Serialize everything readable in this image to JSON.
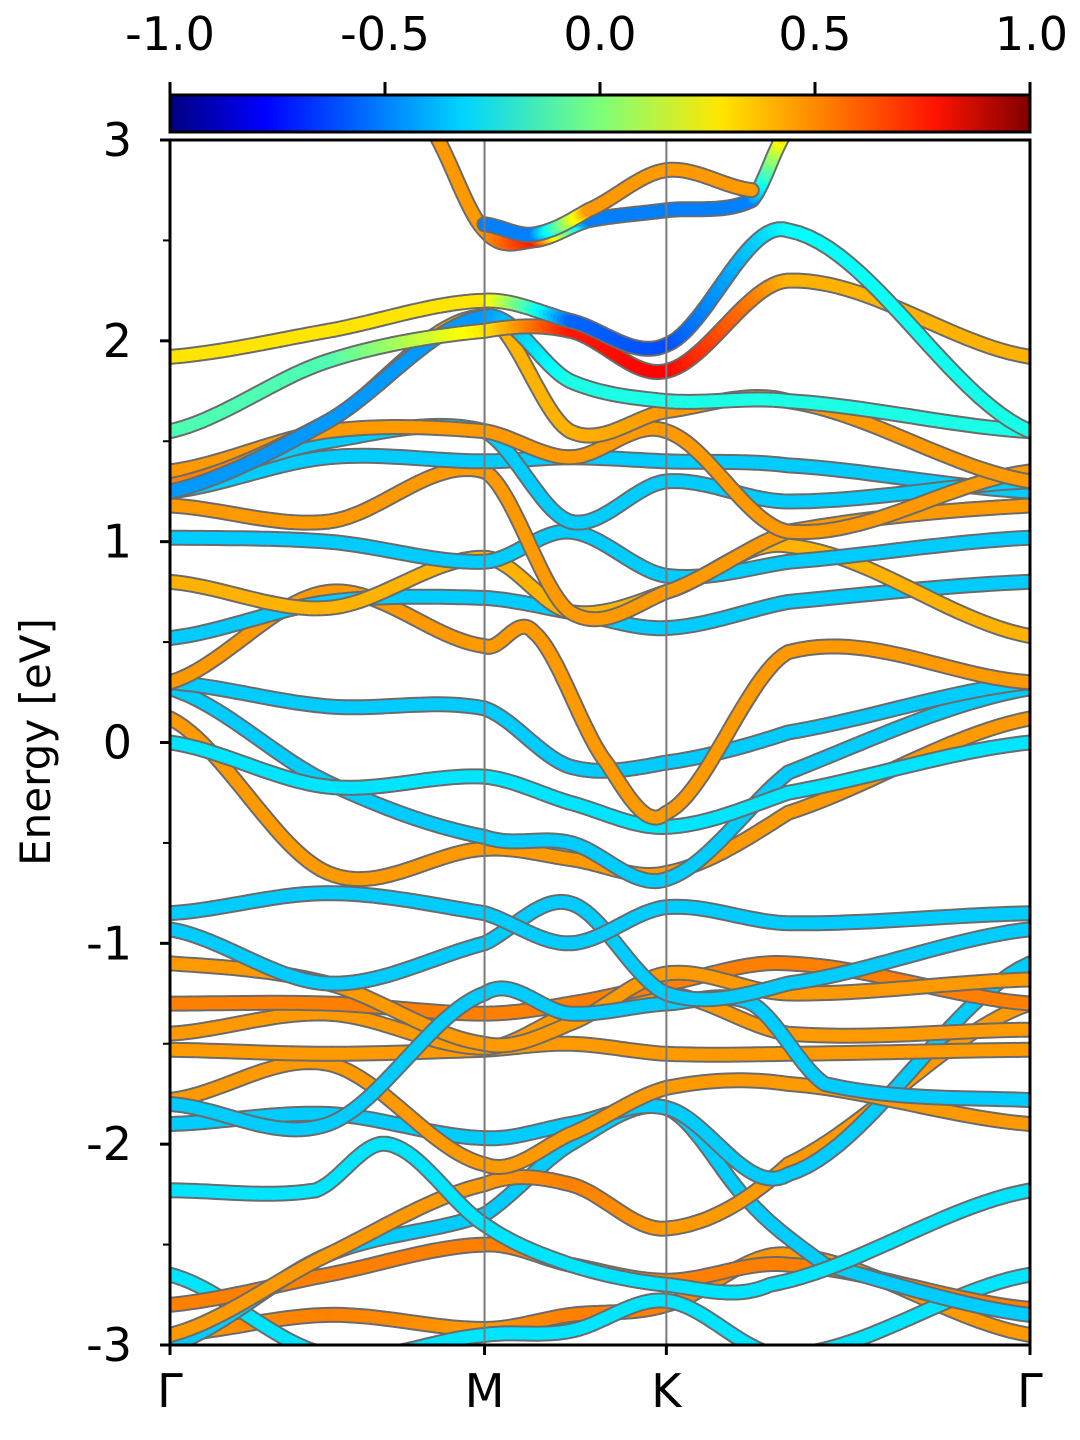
{
  "chart_data": {
    "type": "line",
    "ylabel": "Energy [eV]",
    "ylim": [
      -3,
      3
    ],
    "yticks": [
      -3,
      -2,
      -1,
      0,
      1,
      2,
      3
    ],
    "yminor_ticks": [
      -2.5,
      -1.5,
      -0.5,
      0.5,
      1.5,
      2.5
    ],
    "ytick_labels": [
      "-3",
      "-2",
      "-1",
      "0",
      "1",
      "2",
      "3"
    ],
    "x_range": [
      0,
      4.73
    ],
    "kpoints": [
      {
        "label": "Γ",
        "x": 0
      },
      {
        "label": "M",
        "x": 1.73
      },
      {
        "label": "K",
        "x": 2.73
      },
      {
        "label": "Γ",
        "x": 4.73
      }
    ],
    "grid": "vertical lines at high-symmetry points",
    "colorbar": {
      "position": "top",
      "colormap": "jet",
      "range": [
        -1.0,
        1.0
      ],
      "ticks": [
        -1.0,
        -0.5,
        0.0,
        0.5,
        1.0
      ],
      "tick_labels": [
        "-1.0",
        "-0.5",
        "0.0",
        "0.5",
        "1.0"
      ]
    },
    "series": [
      {
        "x": [
          0,
          0.87,
          1.73,
          2.2,
          2.73,
          3.4,
          4.73
        ],
        "y": [
          -2.95,
          -2.85,
          -2.92,
          -2.85,
          -2.8,
          -2.55,
          -2.95
        ],
        "c": [
          0.45,
          0.5,
          0.45,
          0.5,
          0.5,
          0.45,
          0.45
        ]
      },
      {
        "x": [
          0,
          0.87,
          1.73,
          2.2,
          2.73,
          3.4,
          4.73
        ],
        "y": [
          -2.65,
          -3.05,
          -2.95,
          -2.93,
          -2.78,
          -3.05,
          -2.65
        ],
        "c": [
          -0.3,
          -0.3,
          -0.3,
          -0.3,
          -0.3,
          -0.3,
          -0.3
        ]
      },
      {
        "x": [
          0,
          0.87,
          1.73,
          2.2,
          2.73,
          3.4,
          4.73
        ],
        "y": [
          -2.8,
          -2.65,
          -2.5,
          -2.6,
          -2.68,
          -2.6,
          -2.82
        ],
        "c": [
          0.5,
          0.5,
          0.5,
          0.5,
          0.5,
          0.5,
          0.5
        ]
      },
      {
        "x": [
          0,
          0.87,
          1.73,
          2.2,
          2.73,
          3.2,
          3.6,
          4.73
        ],
        "y": [
          -3.0,
          -2.55,
          -2.35,
          -2.0,
          -1.82,
          -2.3,
          -2.6,
          -2.85
        ],
        "c": [
          -0.35,
          -0.35,
          -0.35,
          -0.35,
          -0.35,
          -0.35,
          -0.35,
          -0.35
        ]
      },
      {
        "x": [
          0,
          0.87,
          1.73,
          2.2,
          2.73,
          3.4,
          4.73
        ],
        "y": [
          -2.95,
          -2.55,
          -2.2,
          -2.2,
          -2.42,
          -2.1,
          -1.3
        ],
        "c": [
          0.45,
          0.45,
          0.45,
          0.5,
          0.45,
          0.45,
          0.45
        ]
      },
      {
        "x": [
          0,
          0.8,
          1.2,
          1.73,
          2.2,
          2.73,
          3.3,
          4.73
        ],
        "y": [
          -2.23,
          -2.23,
          -2.0,
          -2.4,
          -2.6,
          -2.7,
          -2.7,
          -2.23
        ],
        "c": [
          -0.3,
          -0.3,
          -0.3,
          -0.3,
          -0.3,
          -0.3,
          -0.3,
          -0.3
        ]
      },
      {
        "x": [
          0,
          0.87,
          1.73,
          2.2,
          2.73,
          3.4,
          4.73
        ],
        "y": [
          -1.9,
          -1.85,
          -1.97,
          -1.9,
          -1.82,
          -2.15,
          -1.1
        ],
        "c": [
          -0.35,
          -0.35,
          -0.35,
          -0.35,
          -0.35,
          -0.35,
          -0.35
        ]
      },
      {
        "x": [
          0,
          0.87,
          1.73,
          2.2,
          2.73,
          3.4,
          4.73
        ],
        "y": [
          -1.78,
          -1.6,
          -2.1,
          -1.95,
          -1.72,
          -1.7,
          -1.9
        ],
        "c": [
          0.45,
          0.45,
          0.45,
          0.45,
          0.45,
          0.45,
          0.45
        ]
      },
      {
        "x": [
          0,
          0.87,
          1.73,
          2.2,
          2.73,
          3.4,
          4.73
        ],
        "y": [
          -1.53,
          -1.55,
          -1.53,
          -1.5,
          -1.55,
          -1.55,
          -1.53
        ],
        "c": [
          0.45,
          0.45,
          0.45,
          0.45,
          0.45,
          0.45,
          0.45
        ]
      },
      {
        "x": [
          0,
          0.87,
          1.73,
          2.2,
          2.73,
          3.4,
          4.73
        ],
        "y": [
          -1.45,
          -1.35,
          -1.52,
          -1.35,
          -1.25,
          -1.45,
          -1.43
        ],
        "c": [
          0.45,
          0.45,
          0.45,
          0.45,
          0.45,
          0.45,
          0.45
        ]
      },
      {
        "x": [
          0,
          0.87,
          1.73,
          2.2,
          2.73,
          3.4,
          4.73
        ],
        "y": [
          -1.3,
          -1.3,
          -1.35,
          -1.3,
          -1.2,
          -1.1,
          -1.3
        ],
        "c": [
          0.5,
          0.5,
          0.5,
          0.5,
          0.5,
          0.5,
          0.5
        ]
      },
      {
        "x": [
          0,
          0.87,
          1.73,
          2.2,
          2.73,
          3.4,
          4.73
        ],
        "y": [
          -1.1,
          -1.2,
          -1.5,
          -1.4,
          -1.15,
          -1.25,
          -1.18
        ],
        "c": [
          0.45,
          0.45,
          0.45,
          0.45,
          0.45,
          0.45,
          0.45
        ]
      },
      {
        "x": [
          0,
          0.87,
          1.73,
          2.2,
          2.73,
          3.2,
          3.6,
          4.73
        ],
        "y": [
          -1.8,
          -1.9,
          -1.25,
          -1.35,
          -1.3,
          -1.3,
          -1.7,
          -1.78
        ],
        "c": [
          -0.35,
          -0.35,
          -0.35,
          -0.35,
          -0.35,
          -0.35,
          -0.35,
          -0.35
        ]
      },
      {
        "x": [
          0,
          0.87,
          1.73,
          2.2,
          2.73,
          3.4,
          4.73
        ],
        "y": [
          -0.93,
          -1.2,
          -1.0,
          -0.8,
          -1.25,
          -1.2,
          -0.93
        ],
        "c": [
          -0.35,
          -0.35,
          -0.35,
          -0.35,
          -0.35,
          -0.35,
          -0.35
        ]
      },
      {
        "x": [
          0,
          0.87,
          1.73,
          2.2,
          2.73,
          3.4,
          4.73
        ],
        "y": [
          -0.85,
          -0.75,
          -0.85,
          -1.0,
          -0.82,
          -0.9,
          -0.85
        ],
        "c": [
          -0.35,
          -0.35,
          -0.35,
          -0.35,
          -0.35,
          -0.35,
          -0.35
        ]
      },
      {
        "x": [
          0,
          0.87,
          1.73,
          2.2,
          2.73,
          3.4,
          4.73
        ],
        "y": [
          0.12,
          -0.65,
          -0.53,
          -0.58,
          -0.65,
          -0.35,
          0.12
        ],
        "c": [
          0.45,
          0.45,
          0.45,
          0.45,
          0.45,
          0.45,
          0.45
        ]
      },
      {
        "x": [
          0,
          0.87,
          1.73,
          2.2,
          2.73,
          3.4,
          4.73
        ],
        "y": [
          0.27,
          -0.2,
          -0.47,
          -0.5,
          -0.68,
          -0.15,
          0.27
        ],
        "c": [
          -0.35,
          -0.35,
          -0.35,
          -0.35,
          -0.35,
          -0.35,
          -0.35
        ]
      },
      {
        "x": [
          0,
          0.87,
          1.73,
          2.2,
          2.73,
          3.4,
          4.73
        ],
        "y": [
          0.0,
          -0.22,
          -0.17,
          -0.3,
          -0.42,
          -0.25,
          0.0
        ],
        "c": [
          -0.3,
          -0.3,
          -0.3,
          -0.3,
          -0.3,
          -0.3,
          -0.3
        ]
      },
      {
        "x": [
          0,
          0.87,
          1.73,
          2.2,
          2.73,
          3.4,
          4.73
        ],
        "y": [
          0.3,
          0.18,
          0.17,
          -0.12,
          -0.1,
          0.05,
          0.3
        ],
        "c": [
          -0.35,
          -0.35,
          -0.35,
          -0.35,
          -0.35,
          -0.35,
          -0.35
        ]
      },
      {
        "x": [
          0,
          0.87,
          1.73,
          2.0,
          2.4,
          2.73,
          3.4,
          4.73
        ],
        "y": [
          0.3,
          0.75,
          0.48,
          0.55,
          -0.1,
          -0.35,
          0.45,
          0.3
        ],
        "c": [
          0.45,
          0.45,
          0.45,
          0.45,
          0.45,
          0.45,
          0.45,
          0.45
        ]
      },
      {
        "x": [
          0,
          0.87,
          1.73,
          2.2,
          2.73,
          3.4,
          4.73
        ],
        "y": [
          0.52,
          0.7,
          0.72,
          0.65,
          0.57,
          0.7,
          0.8
        ],
        "c": [
          -0.35,
          -0.35,
          -0.35,
          -0.35,
          -0.35,
          -0.35,
          -0.35
        ]
      },
      {
        "x": [
          0,
          0.87,
          1.73,
          2.2,
          2.73,
          3.4,
          4.73
        ],
        "y": [
          0.8,
          0.67,
          0.92,
          0.65,
          0.75,
          0.98,
          0.53
        ],
        "c": [
          0.4,
          0.4,
          0.4,
          0.4,
          0.4,
          0.4,
          0.4
        ]
      },
      {
        "x": [
          0,
          0.87,
          1.73,
          2.2,
          2.73,
          3.4,
          4.73
        ],
        "y": [
          1.02,
          1.0,
          0.9,
          1.05,
          0.83,
          0.9,
          1.02
        ],
        "c": [
          -0.35,
          -0.35,
          -0.35,
          -0.35,
          -0.35,
          -0.35,
          -0.35
        ]
      },
      {
        "x": [
          0,
          0.87,
          1.73,
          2.2,
          2.73,
          3.4,
          4.73
        ],
        "y": [
          1.18,
          1.1,
          1.35,
          0.65,
          0.75,
          1.05,
          1.18
        ],
        "c": [
          0.45,
          0.45,
          0.45,
          0.45,
          0.45,
          0.45,
          0.45
        ]
      },
      {
        "x": [
          0,
          0.87,
          1.73,
          2.2,
          2.73,
          3.4,
          4.73
        ],
        "y": [
          1.25,
          1.42,
          1.4,
          1.42,
          1.4,
          1.38,
          1.25
        ],
        "c": [
          -0.35,
          -0.35,
          -0.35,
          -0.35,
          -0.35,
          -0.35,
          -0.35
        ]
      },
      {
        "x": [
          0,
          0.87,
          1.73,
          2.2,
          2.73,
          3.4,
          4.73
        ],
        "y": [
          1.3,
          1.5,
          1.55,
          1.1,
          1.3,
          1.2,
          1.3
        ],
        "c": [
          -0.35,
          -0.35,
          -0.35,
          -0.35,
          -0.35,
          -0.35,
          -0.35
        ]
      },
      {
        "x": [
          0,
          0.87,
          1.73,
          2.2,
          2.73,
          3.4,
          4.73
        ],
        "y": [
          1.35,
          1.55,
          1.55,
          1.42,
          1.55,
          1.05,
          1.35
        ],
        "c": [
          0.45,
          0.45,
          0.45,
          0.45,
          0.45,
          0.45,
          0.45
        ]
      },
      {
        "x": [
          0,
          0.87,
          1.73,
          2.2,
          2.73,
          3.4,
          4.73
        ],
        "y": [
          1.28,
          1.6,
          2.12,
          1.55,
          1.65,
          1.7,
          1.3
        ],
        "c": [
          0.5,
          0.5,
          0.4,
          0.4,
          0.45,
          0.45,
          0.45
        ]
      },
      {
        "x": [
          0,
          0.87,
          1.73,
          2.2,
          2.73,
          3.4,
          4.73
        ],
        "y": [
          1.25,
          1.6,
          2.12,
          1.8,
          1.7,
          1.7,
          1.55
        ],
        "c": [
          -0.45,
          -0.45,
          -0.45,
          -0.2,
          -0.2,
          -0.2,
          -0.2
        ]
      },
      {
        "x": [
          0,
          0.87,
          1.73,
          2.2,
          2.73,
          3.4,
          4.73
        ],
        "y": [
          1.55,
          1.9,
          2.05,
          2.05,
          1.85,
          2.3,
          1.92
        ],
        "c": [
          -0.1,
          -0.1,
          0.3,
          0.7,
          0.75,
          0.4,
          0.4
        ]
      },
      {
        "x": [
          0,
          0.87,
          1.73,
          2.2,
          2.73,
          3.4,
          4.73
        ],
        "y": [
          1.92,
          2.05,
          2.2,
          2.1,
          1.98,
          2.55,
          1.55
        ],
        "c": [
          0.3,
          0.3,
          0.3,
          -0.55,
          -0.6,
          -0.25,
          -0.2
        ]
      },
      {
        "x": [
          1.4,
          1.73,
          2.0,
          2.3,
          2.73,
          3.2,
          3.4
        ],
        "y": [
          3.1,
          2.55,
          2.5,
          2.6,
          2.65,
          2.7,
          3.05
        ],
        "c": [
          0.45,
          0.45,
          0.7,
          -0.5,
          -0.5,
          -0.5,
          0.45
        ]
      },
      {
        "x": [
          1.73,
          2.0,
          2.3,
          2.73,
          3.2
        ],
        "y": [
          2.58,
          2.53,
          2.65,
          2.85,
          2.75
        ],
        "c": [
          -0.5,
          -0.5,
          0.45,
          0.45,
          0.45
        ]
      }
    ]
  }
}
